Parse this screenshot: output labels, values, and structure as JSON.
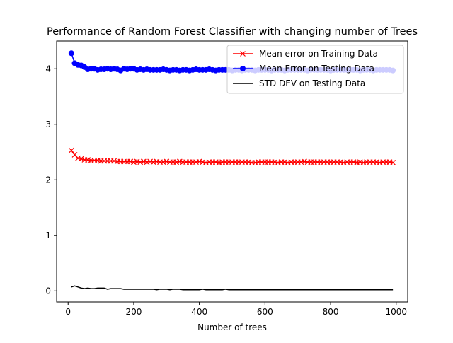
{
  "chart_data": {
    "type": "line",
    "title": "Performance of Random Forest Classifier with changing number of Trees",
    "xlabel": "Number of trees",
    "ylabel": "",
    "xlim": [
      -35,
      1035
    ],
    "ylim": [
      -0.2,
      4.5
    ],
    "xticks": [
      0,
      200,
      400,
      600,
      800,
      1000
    ],
    "yticks": [
      0,
      1,
      2,
      3,
      4
    ],
    "grid": false,
    "legend_position": "top-right",
    "x": [
      10,
      20,
      30,
      40,
      50,
      60,
      70,
      80,
      90,
      100,
      110,
      120,
      130,
      140,
      150,
      160,
      170,
      180,
      190,
      200,
      210,
      220,
      230,
      240,
      250,
      260,
      270,
      280,
      290,
      300,
      310,
      320,
      330,
      340,
      350,
      360,
      370,
      380,
      390,
      400,
      410,
      420,
      430,
      440,
      450,
      460,
      470,
      480,
      490,
      500,
      510,
      520,
      530,
      540,
      550,
      560,
      570,
      580,
      590,
      600,
      610,
      620,
      630,
      640,
      650,
      660,
      670,
      680,
      690,
      700,
      710,
      720,
      730,
      740,
      750,
      760,
      770,
      780,
      790,
      800,
      810,
      820,
      830,
      840,
      850,
      860,
      870,
      880,
      890,
      900,
      910,
      920,
      930,
      940,
      950,
      960,
      970,
      980,
      990
    ],
    "series": [
      {
        "name": "Mean error on Training Data",
        "color": "#ff0000",
        "marker": "x",
        "values": [
          2.53,
          2.45,
          2.39,
          2.38,
          2.36,
          2.36,
          2.35,
          2.35,
          2.35,
          2.34,
          2.34,
          2.34,
          2.34,
          2.34,
          2.33,
          2.33,
          2.33,
          2.33,
          2.33,
          2.32,
          2.33,
          2.32,
          2.33,
          2.32,
          2.33,
          2.32,
          2.33,
          2.32,
          2.32,
          2.33,
          2.32,
          2.32,
          2.32,
          2.33,
          2.32,
          2.32,
          2.32,
          2.32,
          2.32,
          2.33,
          2.32,
          2.31,
          2.32,
          2.32,
          2.32,
          2.31,
          2.32,
          2.32,
          2.32,
          2.32,
          2.32,
          2.32,
          2.32,
          2.32,
          2.32,
          2.31,
          2.31,
          2.32,
          2.32,
          2.32,
          2.32,
          2.32,
          2.32,
          2.31,
          2.32,
          2.32,
          2.31,
          2.32,
          2.32,
          2.32,
          2.32,
          2.33,
          2.32,
          2.32,
          2.32,
          2.32,
          2.32,
          2.32,
          2.32,
          2.32,
          2.32,
          2.32,
          2.32,
          2.31,
          2.32,
          2.32,
          2.32,
          2.31,
          2.32,
          2.31,
          2.32,
          2.32,
          2.32,
          2.32,
          2.31,
          2.32,
          2.32,
          2.32,
          2.31
        ]
      },
      {
        "name": "Mean Error on Testing Data",
        "color": "#0000ff",
        "marker": "o",
        "values": [
          4.28,
          4.1,
          4.07,
          4.06,
          4.03,
          3.99,
          4.0,
          4.0,
          3.98,
          3.99,
          3.99,
          4.0,
          3.99,
          4.0,
          3.99,
          3.97,
          4.0,
          3.99,
          4.0,
          4.0,
          3.98,
          3.99,
          3.98,
          3.99,
          3.98,
          3.98,
          3.98,
          3.98,
          3.99,
          3.98,
          3.97,
          3.98,
          3.98,
          3.97,
          3.98,
          3.98,
          3.97,
          3.98,
          3.99,
          3.98,
          3.98,
          3.98,
          3.99,
          3.98,
          3.97,
          3.98,
          3.98,
          3.98,
          3.98,
          3.97,
          3.98,
          3.98,
          3.97,
          3.98,
          3.98,
          3.98,
          3.97,
          3.98,
          3.98,
          3.98,
          3.98,
          3.97,
          3.98,
          3.98,
          3.98,
          3.97,
          3.98,
          3.98,
          3.98,
          3.98,
          3.98,
          3.98,
          3.97,
          3.98,
          3.98,
          3.98,
          3.98,
          3.98,
          3.98,
          3.97,
          3.98,
          3.98,
          3.98,
          3.98,
          3.98,
          3.98,
          3.98,
          3.98,
          3.97,
          3.98,
          3.98,
          3.98,
          3.97,
          3.98,
          3.98,
          3.98,
          3.98,
          3.98,
          3.97
        ]
      },
      {
        "name": "STD DEV on Testing Data",
        "color": "#000000",
        "marker": "none",
        "values": [
          0.07,
          0.09,
          0.07,
          0.05,
          0.04,
          0.05,
          0.04,
          0.04,
          0.05,
          0.05,
          0.05,
          0.03,
          0.04,
          0.04,
          0.04,
          0.04,
          0.03,
          0.03,
          0.03,
          0.03,
          0.03,
          0.03,
          0.03,
          0.03,
          0.03,
          0.03,
          0.02,
          0.03,
          0.03,
          0.03,
          0.02,
          0.03,
          0.03,
          0.03,
          0.02,
          0.02,
          0.02,
          0.02,
          0.02,
          0.02,
          0.03,
          0.02,
          0.02,
          0.02,
          0.02,
          0.02,
          0.02,
          0.03,
          0.02,
          0.02,
          0.02,
          0.02,
          0.02,
          0.02,
          0.02,
          0.02,
          0.02,
          0.02,
          0.02,
          0.02,
          0.02,
          0.02,
          0.02,
          0.02,
          0.02,
          0.02,
          0.02,
          0.02,
          0.02,
          0.02,
          0.02,
          0.02,
          0.02,
          0.02,
          0.02,
          0.02,
          0.02,
          0.02,
          0.02,
          0.02,
          0.02,
          0.02,
          0.02,
          0.02,
          0.02,
          0.02,
          0.02,
          0.02,
          0.02,
          0.02,
          0.02,
          0.02,
          0.02,
          0.02,
          0.02,
          0.02,
          0.02,
          0.02,
          0.02
        ]
      }
    ]
  }
}
